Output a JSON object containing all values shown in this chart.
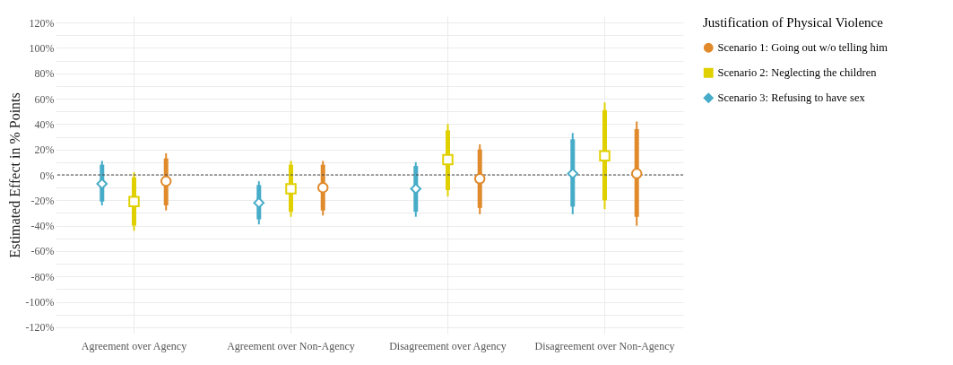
{
  "chart_data": {
    "type": "box",
    "ylabel": "Estimated Effect in % Points",
    "legend_title": "Justification of Physical Violence",
    "categories": [
      "Agreement over Agency",
      "Agreement over Non-Agency",
      "Disagreement over Agency",
      "Disagreement over Non-Agency"
    ],
    "series": [
      {
        "name": "Scenario 1: Going out w/o telling him",
        "color": "#e08a2c",
        "marker": "circle",
        "boxes": [
          {
            "low": -28,
            "q1": -24,
            "median": -5,
            "q3": 13,
            "high": 17
          },
          {
            "low": -32,
            "q1": -28,
            "median": -10,
            "q3": 8,
            "high": 11
          },
          {
            "low": -31,
            "q1": -26,
            "median": -3,
            "q3": 20,
            "high": 24
          },
          {
            "low": -40,
            "q1": -33,
            "median": 1,
            "q3": 36,
            "high": 42
          }
        ]
      },
      {
        "name": "Scenario 2: Neglecting the children",
        "color": "#e1d000",
        "marker": "square",
        "boxes": [
          {
            "low": -44,
            "q1": -40,
            "median": -21,
            "q3": -2,
            "high": 2
          },
          {
            "low": -33,
            "q1": -29,
            "median": -11,
            "q3": 8,
            "high": 11
          },
          {
            "low": -17,
            "q1": -12,
            "median": 12,
            "q3": 35,
            "high": 40
          },
          {
            "low": -27,
            "q1": -20,
            "median": 15,
            "q3": 51,
            "high": 57
          }
        ]
      },
      {
        "name": "Scenario 3: Refusing to have sex",
        "color": "#46acc8",
        "marker": "diamond",
        "boxes": [
          {
            "low": -24,
            "q1": -21,
            "median": -7,
            "q3": 8,
            "high": 11
          },
          {
            "low": -39,
            "q1": -35,
            "median": -22,
            "q3": -8,
            "high": -5
          },
          {
            "low": -33,
            "q1": -29,
            "median": -11,
            "q3": 7,
            "high": 10
          },
          {
            "low": -31,
            "q1": -25,
            "median": 1,
            "q3": 28,
            "high": 33
          }
        ]
      }
    ],
    "ylim": [
      -125,
      125
    ],
    "yticks": [
      {
        "value": -120,
        "label": "-120%"
      },
      {
        "value": -110,
        "label": null
      },
      {
        "value": -100,
        "label": "-100%"
      },
      {
        "value": -90,
        "label": null
      },
      {
        "value": -80,
        "label": "-80%"
      },
      {
        "value": -70,
        "label": null
      },
      {
        "value": -60,
        "label": "-60%"
      },
      {
        "value": -50,
        "label": null
      },
      {
        "value": -40,
        "label": "-40%"
      },
      {
        "value": -30,
        "label": null
      },
      {
        "value": -20,
        "label": "-20%"
      },
      {
        "value": -10,
        "label": null
      },
      {
        "value": 0,
        "label": "0%"
      },
      {
        "value": 10,
        "label": null
      },
      {
        "value": 20,
        "label": "20%"
      },
      {
        "value": 30,
        "label": null
      },
      {
        "value": 40,
        "label": "40%"
      },
      {
        "value": 50,
        "label": null
      },
      {
        "value": 60,
        "label": "60%"
      },
      {
        "value": 70,
        "label": null
      },
      {
        "value": 80,
        "label": "80%"
      },
      {
        "value": 90,
        "label": null
      },
      {
        "value": 100,
        "label": "100%"
      },
      {
        "value": 110,
        "label": null
      },
      {
        "value": 120,
        "label": "120%"
      }
    ],
    "ref_lines": [
      {
        "axis": "y",
        "value": 0,
        "line_style": "dashed",
        "color": "#444444"
      }
    ],
    "grid": true,
    "legend": "right"
  }
}
